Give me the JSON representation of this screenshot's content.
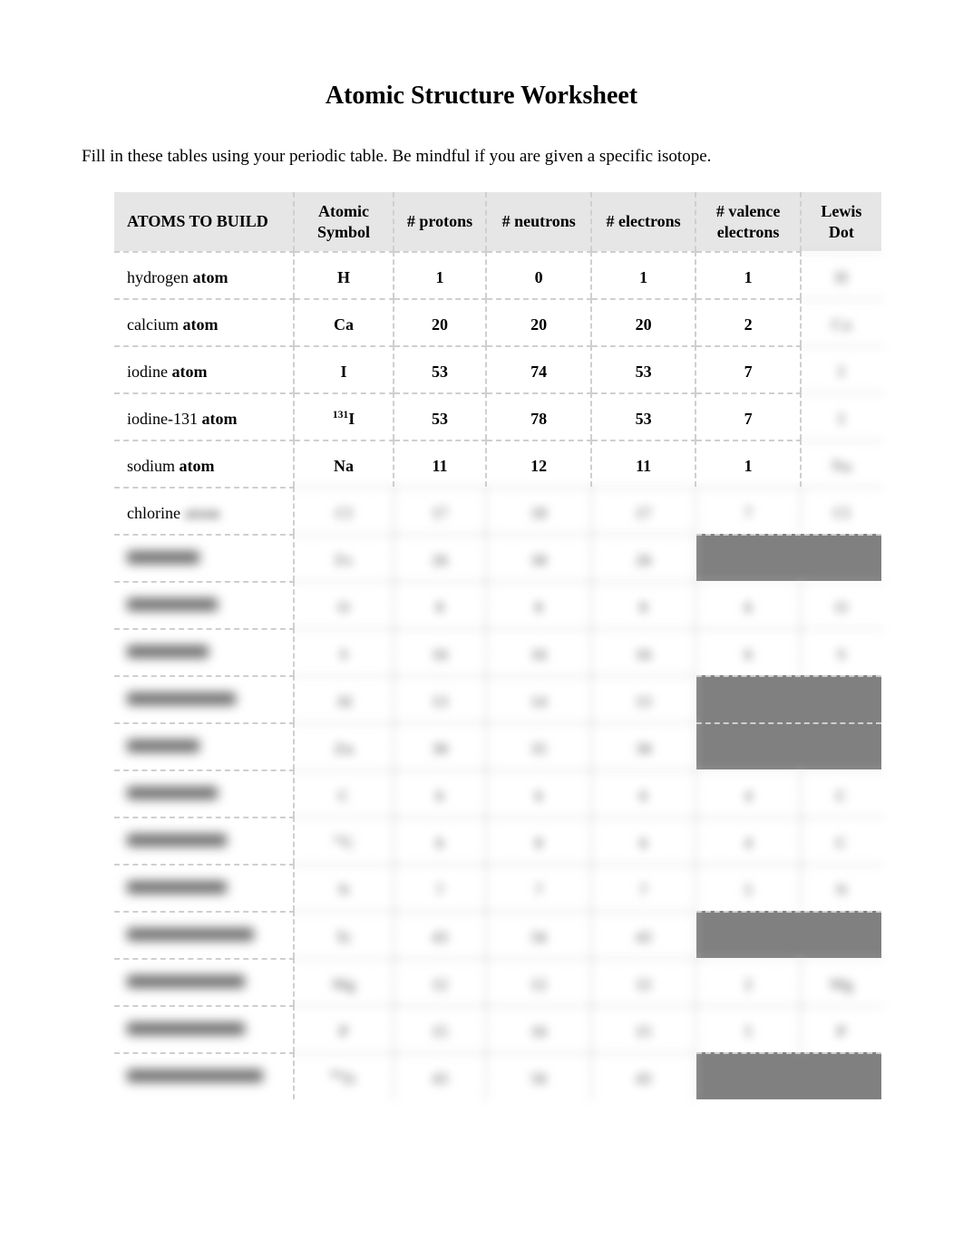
{
  "title": "Atomic Structure Worksheet",
  "instructions": "Fill in these tables using your periodic table.  Be mindful if you are given a specific isotope.",
  "columns": {
    "atoms": "ATOMS TO BUILD",
    "symbol": "Atomic Symbol",
    "protons": "# protons",
    "neutrons": "# neutrons",
    "electrons": "# electrons",
    "valence": "# valence electrons",
    "lewis": "Lewis Dot"
  },
  "rows": [
    {
      "name_plain": "hydrogen ",
      "name_bold": "atom",
      "symbol": "H",
      "protons": "1",
      "neutrons": "0",
      "electrons": "1",
      "valence": "1",
      "lewis": "H",
      "lewis_blur": true
    },
    {
      "name_plain": "calcium ",
      "name_bold": "atom",
      "symbol": "Ca",
      "protons": "20",
      "neutrons": "20",
      "electrons": "20",
      "valence": "2",
      "lewis": "Ca",
      "lewis_blur": true
    },
    {
      "name_plain": "iodine ",
      "name_bold": "atom",
      "symbol": "I",
      "protons": "53",
      "neutrons": "74",
      "electrons": "53",
      "valence": "7",
      "lewis": "I",
      "lewis_blur": true
    },
    {
      "name_plain": "iodine-131 ",
      "name_bold": "atom",
      "symbol_sup": "131",
      "symbol": "I",
      "protons": "53",
      "neutrons": "78",
      "electrons": "53",
      "valence": "7",
      "lewis": "I",
      "lewis_blur": true
    },
    {
      "name_plain": "sodium ",
      "name_bold": "atom",
      "symbol": "Na",
      "protons": "11",
      "neutrons": "12",
      "electrons": "11",
      "valence": "1",
      "lewis": "Na",
      "lewis_blur": true
    },
    {
      "name_plain": "chlorine ",
      "name_blur_word": "atom",
      "blur_row": true,
      "symbol": "Cl",
      "protons": "17",
      "neutrons": "18",
      "electrons": "17",
      "valence": "7",
      "lewis": "Cl"
    },
    {
      "name_blur_full": true,
      "name_w": 80,
      "blur_row": true,
      "symbol": "Fe",
      "protons": "26",
      "neutrons": "30",
      "electrons": "26",
      "greyed": true
    },
    {
      "name_blur_full": true,
      "name_w": 100,
      "blur_row": true,
      "symbol": "O",
      "protons": "8",
      "neutrons": "8",
      "electrons": "8",
      "valence": "6",
      "lewis": "O"
    },
    {
      "name_blur_full": true,
      "name_w": 90,
      "blur_row": true,
      "symbol": "S",
      "protons": "16",
      "neutrons": "16",
      "electrons": "16",
      "valence": "6",
      "lewis": "S"
    },
    {
      "name_blur_full": true,
      "name_w": 120,
      "blur_row": true,
      "symbol": "Al",
      "protons": "13",
      "neutrons": "14",
      "electrons": "13",
      "greyed": true
    },
    {
      "name_blur_full": true,
      "name_w": 80,
      "blur_row": true,
      "symbol": "Zn",
      "protons": "30",
      "neutrons": "35",
      "electrons": "30",
      "greyed": true
    },
    {
      "name_blur_full": true,
      "name_w": 100,
      "blur_row": true,
      "symbol": "C",
      "protons": "6",
      "neutrons": "6",
      "electrons": "6",
      "valence": "4",
      "lewis": "C"
    },
    {
      "name_blur_full": true,
      "name_w": 110,
      "blur_row": true,
      "symbol_sup": "14",
      "symbol": "C",
      "protons": "6",
      "neutrons": "8",
      "electrons": "6",
      "valence": "4",
      "lewis": "C"
    },
    {
      "name_blur_full": true,
      "name_w": 110,
      "blur_row": true,
      "symbol": "N",
      "protons": "7",
      "neutrons": "7",
      "electrons": "7",
      "valence": "5",
      "lewis": "N"
    },
    {
      "name_blur_full": true,
      "name_w": 140,
      "blur_row": true,
      "symbol": "Tc",
      "protons": "43",
      "neutrons": "56",
      "electrons": "43",
      "greyed": true
    },
    {
      "name_blur_full": true,
      "name_w": 130,
      "blur_row": true,
      "symbol": "Mg",
      "protons": "12",
      "neutrons": "12",
      "electrons": "12",
      "valence": "2",
      "lewis": "Mg"
    },
    {
      "name_blur_full": true,
      "name_w": 130,
      "blur_row": true,
      "symbol": "P",
      "protons": "15",
      "neutrons": "16",
      "electrons": "15",
      "valence": "5",
      "lewis": "P"
    },
    {
      "name_blur_full": true,
      "name_w": 150,
      "blur_row": true,
      "symbol_sup": "99",
      "symbol": "Tc",
      "protons": "43",
      "neutrons": "56",
      "electrons": "43",
      "greyed": true
    }
  ]
}
